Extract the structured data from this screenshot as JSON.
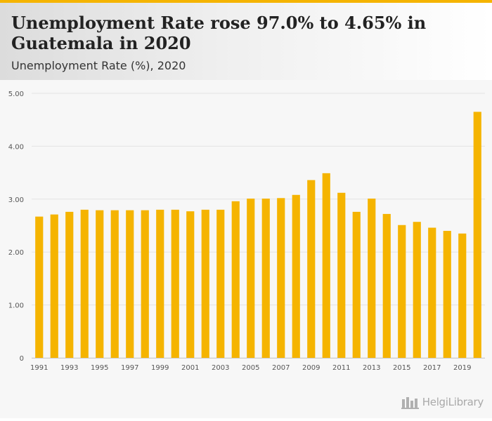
{
  "header": {
    "title": "Unemployment Rate rose 97.0% to 4.65% in Guatemala in 2020",
    "subtitle": "Unemployment Rate (%), 2020"
  },
  "brand": {
    "name": "HelgiLibrary"
  },
  "colors": {
    "bar": "#f5b400",
    "grid": "#e3e3e3",
    "axis_text": "#555555"
  },
  "chart_data": {
    "type": "bar",
    "title": "Unemployment Rate rose 97.0% to 4.65% in Guatemala in 2020",
    "subtitle": "Unemployment Rate (%), 2020",
    "xlabel": "",
    "ylabel": "",
    "categories": [
      "1991",
      "1992",
      "1993",
      "1994",
      "1995",
      "1996",
      "1997",
      "1998",
      "1999",
      "2000",
      "2001",
      "2002",
      "2003",
      "2004",
      "2005",
      "2006",
      "2007",
      "2008",
      "2009",
      "2010",
      "2011",
      "2012",
      "2013",
      "2014",
      "2015",
      "2016",
      "2017",
      "2018",
      "2019",
      "2020"
    ],
    "values": [
      2.67,
      2.71,
      2.76,
      2.8,
      2.79,
      2.79,
      2.79,
      2.79,
      2.8,
      2.8,
      2.77,
      2.8,
      2.8,
      2.96,
      3.01,
      3.01,
      3.02,
      3.08,
      3.36,
      3.49,
      3.12,
      2.76,
      3.01,
      2.72,
      2.51,
      2.57,
      2.46,
      2.4,
      2.35,
      4.65
    ],
    "x_tick_labels": [
      "1991",
      "1993",
      "1995",
      "1997",
      "1999",
      "2001",
      "2003",
      "2005",
      "2007",
      "2009",
      "2011",
      "2013",
      "2015",
      "2017",
      "2019"
    ],
    "y_ticks": [
      "0",
      "1.00",
      "2.00",
      "3.00",
      "4.00",
      "5.00"
    ],
    "ylim": [
      0,
      5
    ],
    "grid": true
  }
}
